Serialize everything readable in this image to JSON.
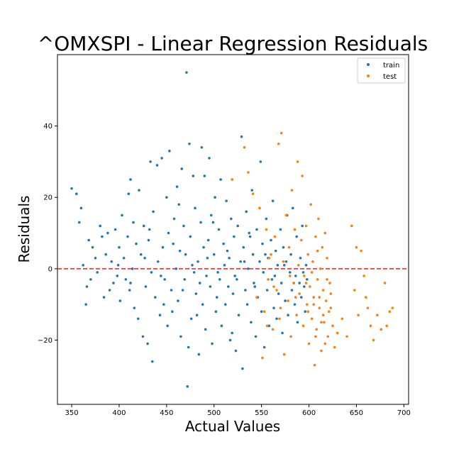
{
  "chart_data": {
    "type": "scatter",
    "title": "^OMXSPI - Linear Regression Residuals",
    "xlabel": "Actual Values",
    "ylabel": "Residuals",
    "xlim": [
      335,
      705
    ],
    "ylim": [
      -38,
      60
    ],
    "xticks": [
      350,
      400,
      450,
      500,
      550,
      600,
      650,
      700
    ],
    "yticks": [
      -20,
      0,
      20,
      40
    ],
    "ytick_labels": [
      "−20",
      "0",
      "20",
      "40"
    ],
    "reference_line": {
      "y": 0,
      "color": "#d62728",
      "style": "dashed"
    },
    "legend": {
      "placement": "upper right",
      "entries": [
        "train",
        "test"
      ]
    },
    "grid": false,
    "series": [
      {
        "name": "train",
        "color": "#1f77b4",
        "points": [
          [
            350,
            22.5
          ],
          [
            355,
            21
          ],
          [
            358,
            13
          ],
          [
            360,
            17
          ],
          [
            362,
            1
          ],
          [
            365,
            -10
          ],
          [
            366,
            -5
          ],
          [
            368,
            8
          ],
          [
            370,
            -3
          ],
          [
            372,
            6
          ],
          [
            375,
            3
          ],
          [
            377,
            -1
          ],
          [
            380,
            12
          ],
          [
            382,
            9
          ],
          [
            384,
            -8
          ],
          [
            386,
            4
          ],
          [
            388,
            10
          ],
          [
            390,
            -6
          ],
          [
            392,
            2
          ],
          [
            394,
            -4
          ],
          [
            396,
            11
          ],
          [
            398,
            -2
          ],
          [
            400,
            6
          ],
          [
            401,
            -9
          ],
          [
            403,
            15
          ],
          [
            405,
            3
          ],
          [
            407,
            -3
          ],
          [
            409,
            9
          ],
          [
            410,
            21
          ],
          [
            411,
            -6
          ],
          [
            412,
            25
          ],
          [
            414,
            0
          ],
          [
            415,
            13
          ],
          [
            416,
            -11
          ],
          [
            418,
            7
          ],
          [
            420,
            -14
          ],
          [
            421,
            22
          ],
          [
            423,
            4
          ],
          [
            425,
            -19
          ],
          [
            426,
            12
          ],
          [
            428,
            -5
          ],
          [
            430,
            -21
          ],
          [
            431,
            8
          ],
          [
            433,
            30
          ],
          [
            434,
            -1
          ],
          [
            435,
            -26
          ],
          [
            436,
            16
          ],
          [
            438,
            -8
          ],
          [
            440,
            29
          ],
          [
            441,
            2
          ],
          [
            443,
            -13
          ],
          [
            445,
            31
          ],
          [
            446,
            6
          ],
          [
            448,
            -3
          ],
          [
            450,
            20
          ],
          [
            451,
            -16
          ],
          [
            452,
            10
          ],
          [
            453,
            33
          ],
          [
            455,
            -6
          ],
          [
            456,
            -12
          ],
          [
            458,
            14
          ],
          [
            460,
            0
          ],
          [
            461,
            23
          ],
          [
            462,
            -9
          ],
          [
            464,
            5
          ],
          [
            465,
            -19
          ],
          [
            466,
            28
          ],
          [
            468,
            12
          ],
          [
            469,
            -3
          ],
          [
            470,
            4
          ],
          [
            471,
            55
          ],
          [
            472,
            -33
          ],
          [
            473,
            -22
          ],
          [
            474,
            35
          ],
          [
            475,
            9
          ],
          [
            476,
            -14
          ],
          [
            478,
            26
          ],
          [
            479,
            -1
          ],
          [
            480,
            17
          ],
          [
            481,
            -7
          ],
          [
            483,
            2
          ],
          [
            484,
            -24
          ],
          [
            486,
            13
          ],
          [
            487,
            34
          ],
          [
            488,
            -10
          ],
          [
            489,
            6
          ],
          [
            490,
            26
          ],
          [
            491,
            -17
          ],
          [
            492,
            -2
          ],
          [
            494,
            8
          ],
          [
            495,
            31
          ],
          [
            496,
            -5
          ],
          [
            497,
            15
          ],
          [
            498,
            -21
          ],
          [
            500,
            4
          ],
          [
            501,
            20
          ],
          [
            502,
            -12
          ],
          [
            503,
            -8
          ],
          [
            505,
            11
          ],
          [
            506,
            -3
          ],
          [
            507,
            25
          ],
          [
            508,
            -16
          ],
          [
            510,
            7
          ],
          [
            511,
            1
          ],
          [
            512,
            -10
          ],
          [
            513,
            19
          ],
          [
            515,
            -5
          ],
          [
            516,
            3
          ],
          [
            517,
            -20
          ],
          [
            518,
            14
          ],
          [
            520,
            -7
          ],
          [
            521,
            9
          ],
          [
            522,
            -2
          ],
          [
            523,
            -23
          ],
          [
            525,
            12
          ],
          [
            526,
            -13
          ],
          [
            528,
            2
          ],
          [
            529,
            37
          ],
          [
            530,
            -28
          ],
          [
            531,
            6
          ],
          [
            533,
            -6
          ],
          [
            534,
            16
          ],
          [
            535,
            -10
          ],
          [
            536,
            0
          ],
          [
            538,
            9
          ],
          [
            539,
            -15
          ],
          [
            540,
            22
          ],
          [
            541,
            4
          ],
          [
            542,
            -4
          ],
          [
            544,
            -19
          ],
          [
            545,
            11
          ],
          [
            546,
            -8
          ],
          [
            548,
            2
          ],
          [
            549,
            30
          ],
          [
            550,
            -12
          ],
          [
            551,
            7
          ],
          [
            552,
            -1
          ],
          [
            553,
            -22
          ],
          [
            555,
            14
          ],
          [
            556,
            -6
          ],
          [
            557,
            3
          ],
          [
            558,
            -16
          ],
          [
            560,
            8
          ],
          [
            561,
            -3
          ],
          [
            562,
            19
          ],
          [
            563,
            -11
          ],
          [
            565,
            5
          ],
          [
            566,
            -14
          ],
          [
            567,
            1
          ],
          [
            568,
            -7
          ],
          [
            570,
            11
          ],
          [
            571,
            -4
          ],
          [
            572,
            -18
          ],
          [
            573,
            6
          ],
          [
            575,
            -9
          ],
          [
            576,
            2
          ],
          [
            577,
            15
          ],
          [
            578,
            -13
          ],
          [
            580,
            -1
          ],
          [
            581,
            4
          ],
          [
            582,
            -6
          ],
          [
            583,
            17
          ],
          [
            585,
            -10
          ],
          [
            586,
            -2
          ],
          [
            587,
            9
          ],
          [
            588,
            -15
          ],
          [
            590,
            -4
          ],
          [
            591,
            3
          ],
          [
            592,
            -8
          ],
          [
            593,
            12
          ],
          [
            595,
            -5
          ],
          [
            596,
            -12
          ],
          [
            597,
            1
          ],
          [
            598,
            -3
          ],
          [
            399,
            1
          ],
          [
            412,
            -4
          ],
          [
            427,
            3
          ],
          [
            444,
            -2
          ],
          [
            457,
            7
          ],
          [
            467,
            -6
          ],
          [
            477,
            1
          ],
          [
            485,
            -4
          ],
          [
            493,
            3
          ],
          [
            504,
            -1
          ],
          [
            514,
            5
          ],
          [
            524,
            -3
          ],
          [
            532,
            2
          ],
          [
            543,
            -5
          ],
          [
            554,
            4
          ],
          [
            564,
            -2
          ],
          [
            574,
            1
          ],
          [
            584,
            -4
          ],
          [
            594,
            -1
          ],
          [
            432,
            11
          ],
          [
            447,
            -10
          ],
          [
            463,
            18
          ],
          [
            482,
            -13
          ],
          [
            499,
            13
          ],
          [
            519,
            -18
          ],
          [
            537,
            10
          ]
        ]
      },
      {
        "name": "test",
        "color": "#ff7f0e",
        "points": [
          [
            519,
            25
          ],
          [
            532,
            34
          ],
          [
            536,
            27
          ],
          [
            541,
            21
          ],
          [
            545,
            -8
          ],
          [
            548,
            17
          ],
          [
            551,
            -25
          ],
          [
            553,
            -12
          ],
          [
            555,
            11
          ],
          [
            557,
            -3
          ],
          [
            560,
            4
          ],
          [
            562,
            -17
          ],
          [
            564,
            9
          ],
          [
            566,
            -6
          ],
          [
            568,
            35
          ],
          [
            569,
            -14
          ],
          [
            571,
            38
          ],
          [
            573,
            2
          ],
          [
            574,
            -24
          ],
          [
            576,
            15
          ],
          [
            578,
            -9
          ],
          [
            579,
            6
          ],
          [
            581,
            -19
          ],
          [
            582,
            22
          ],
          [
            584,
            -4
          ],
          [
            585,
            11
          ],
          [
            587,
            -13
          ],
          [
            588,
            30
          ],
          [
            589,
            1
          ],
          [
            590,
            -7
          ],
          [
            592,
            8
          ],
          [
            593,
            26
          ],
          [
            594,
            -16
          ],
          [
            595,
            -2
          ],
          [
            597,
            12
          ],
          [
            598,
            -10
          ],
          [
            599,
            4
          ],
          [
            600,
            -21
          ],
          [
            601,
            -5
          ],
          [
            602,
            18
          ],
          [
            603,
            -14
          ],
          [
            604,
            2
          ],
          [
            605,
            -8
          ],
          [
            606,
            -27
          ],
          [
            607,
            9
          ],
          [
            608,
            -17
          ],
          [
            609,
            -3
          ],
          [
            610,
            14
          ],
          [
            611,
            -11
          ],
          [
            612,
            0
          ],
          [
            613,
            -23
          ],
          [
            614,
            6
          ],
          [
            615,
            -6
          ],
          [
            616,
            -15
          ],
          [
            617,
            10
          ],
          [
            618,
            -9
          ],
          [
            619,
            3
          ],
          [
            620,
            -19
          ],
          [
            621,
            -12
          ],
          [
            622,
            -4
          ],
          [
            623,
            -7
          ],
          [
            625,
            -16
          ],
          [
            627,
            -22
          ],
          [
            630,
            -18
          ],
          [
            635,
            -14
          ],
          [
            640,
            -19
          ],
          [
            645,
            12
          ],
          [
            648,
            -6
          ],
          [
            650,
            6
          ],
          [
            652,
            -13
          ],
          [
            655,
            5
          ],
          [
            658,
            -2
          ],
          [
            660,
            -8
          ],
          [
            662,
            -11
          ],
          [
            665,
            -16
          ],
          [
            668,
            -20
          ],
          [
            672,
            -13
          ],
          [
            676,
            -17
          ],
          [
            680,
            -4
          ],
          [
            682,
            -16
          ],
          [
            685,
            -12
          ],
          [
            688,
            -11
          ],
          [
            599,
            -12
          ],
          [
            603,
            -1
          ],
          [
            607,
            -19
          ],
          [
            611,
            -8
          ],
          [
            615,
            -13
          ],
          [
            619,
            -3
          ],
          [
            623,
            -11
          ],
          [
            609,
            5
          ],
          [
            613,
            -15
          ],
          [
            617,
            -21
          ],
          [
            605,
            -10
          ],
          [
            597,
            -4
          ],
          [
            586,
            -8
          ],
          [
            580,
            -2
          ],
          [
            570,
            -11
          ],
          [
            563,
            -5
          ],
          [
            558,
            3
          ],
          [
            556,
            -16
          ]
        ]
      }
    ]
  }
}
